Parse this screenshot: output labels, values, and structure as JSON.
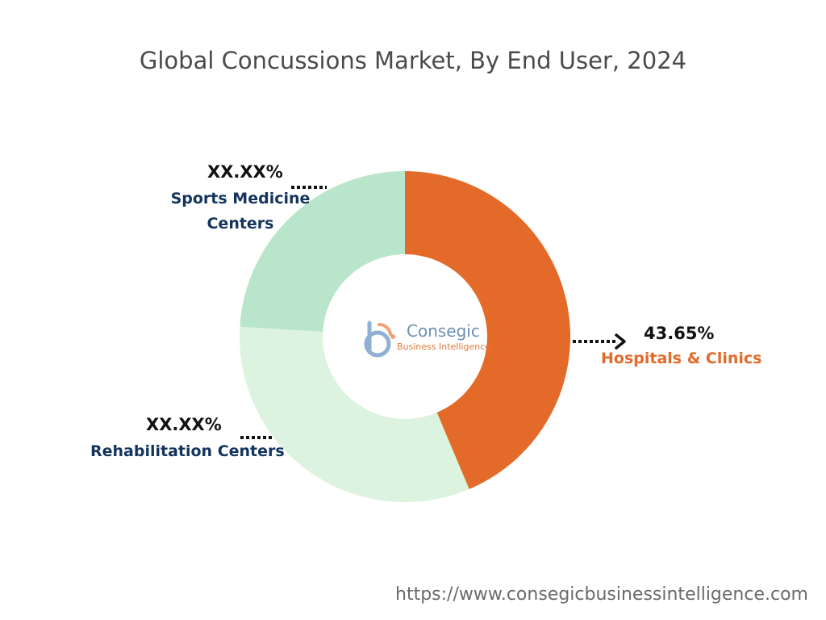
{
  "title": "Global Concussions Market, By End User, 2024",
  "source_url": "https://www.consegicbusinessintelligence.com",
  "logo": {
    "name": "Consegic",
    "tagline": "Business Intelligence"
  },
  "colors": {
    "hospitals": "#e36a28",
    "rehabilitation": "#dcf3df",
    "sports": "#b9e5cb",
    "label_blue": "#13345c",
    "label_orange": "#e36a28"
  },
  "chart_data": {
    "type": "pie",
    "donut": true,
    "start_angle_deg": 0,
    "direction": "clockwise",
    "slices": [
      {
        "key": "hospitals",
        "label": "Hospitals & Clinics",
        "value": 43.65,
        "value_text": "43.65%"
      },
      {
        "key": "rehabilitation",
        "label": "Rehabilitation Centers",
        "value": 32.3,
        "value_text": "XX.XX%"
      },
      {
        "key": "sports",
        "label": "Sports Medicine Centers",
        "label_lines": [
          "Sports Medicine",
          "Centers"
        ],
        "value": 24.05,
        "value_text": "XX.XX%"
      }
    ]
  }
}
